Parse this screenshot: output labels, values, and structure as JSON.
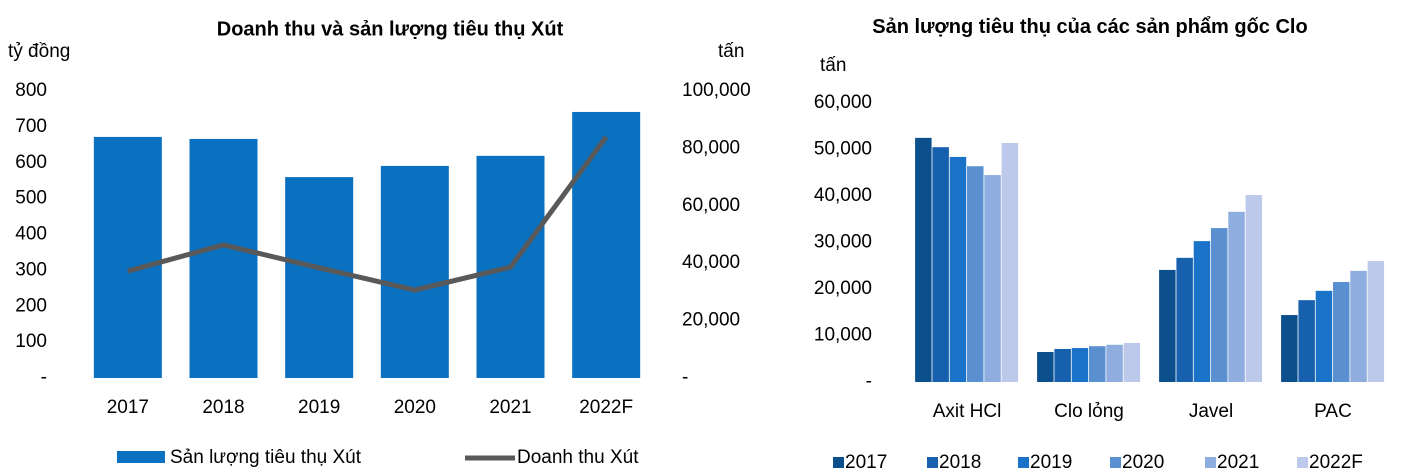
{
  "chart_data": [
    {
      "type": "combo",
      "title": "Doanh thu và sản lượng tiêu thụ Xút",
      "y_label": "tỷ đồng",
      "y2_label": "tấn",
      "categories": [
        "2017",
        "2018",
        "2019",
        "2020",
        "2021",
        "2022F"
      ],
      "series": [
        {
          "name": "Sản lượng tiêu thụ Xút",
          "kind": "bar",
          "axis": "y2",
          "color": "#0a70c0",
          "values": [
            84000,
            83300,
            70000,
            73900,
            77400,
            92700
          ]
        },
        {
          "name": "Doanh thu Xút",
          "kind": "line",
          "axis": "y",
          "color": "#595959",
          "values": [
            298,
            371,
            307,
            245,
            309,
            672
          ]
        }
      ],
      "ylim": [
        0,
        800
      ],
      "yticks": [
        {
          "value": 0,
          "label": "-"
        },
        100,
        200,
        300,
        400,
        500,
        600,
        700,
        800
      ],
      "y2lim": [
        0,
        100000
      ],
      "y2ticks": [
        {
          "value": 0,
          "label": "-"
        },
        {
          "value": 20000,
          "label": "20,000"
        },
        {
          "value": 40000,
          "label": "40,000"
        },
        {
          "value": 60000,
          "label": "60,000"
        },
        {
          "value": 80000,
          "label": "80,000"
        },
        {
          "value": 100000,
          "label": "100,000"
        }
      ],
      "grid": false
    },
    {
      "type": "bar",
      "title": "Sản lượng tiêu thụ của các sản phẩm gốc Clo",
      "y_label": "tấn",
      "categories": [
        "Axit HCl",
        "Clo lỏng",
        "Javel",
        "PAC"
      ],
      "series": [
        {
          "name": "2017",
          "color": "#0b4f8c",
          "values": [
            52500,
            6450,
            24100,
            14400
          ]
        },
        {
          "name": "2018",
          "color": "#1660ad",
          "values": [
            50500,
            7100,
            26700,
            17600
          ]
        },
        {
          "name": "2019",
          "color": "#1a73c8",
          "values": [
            48400,
            7300,
            30300,
            19600
          ]
        },
        {
          "name": "2020",
          "color": "#5a8fd0",
          "values": [
            46400,
            7700,
            33100,
            21500
          ]
        },
        {
          "name": "2021",
          "color": "#8fadde",
          "values": [
            44500,
            8000,
            36600,
            23900
          ]
        },
        {
          "name": "2022F",
          "color": "#bcc9ea",
          "values": [
            51400,
            8400,
            40200,
            26000
          ]
        }
      ],
      "ylim": [
        0,
        60000
      ],
      "yticks": [
        {
          "value": 0,
          "label": "-"
        },
        {
          "value": 10000,
          "label": "10,000"
        },
        {
          "value": 20000,
          "label": "20,000"
        },
        {
          "value": 30000,
          "label": "30,000"
        },
        {
          "value": 40000,
          "label": "40,000"
        },
        {
          "value": 50000,
          "label": "50,000"
        },
        {
          "value": 60000,
          "label": "60,000"
        }
      ],
      "grid": false
    }
  ]
}
